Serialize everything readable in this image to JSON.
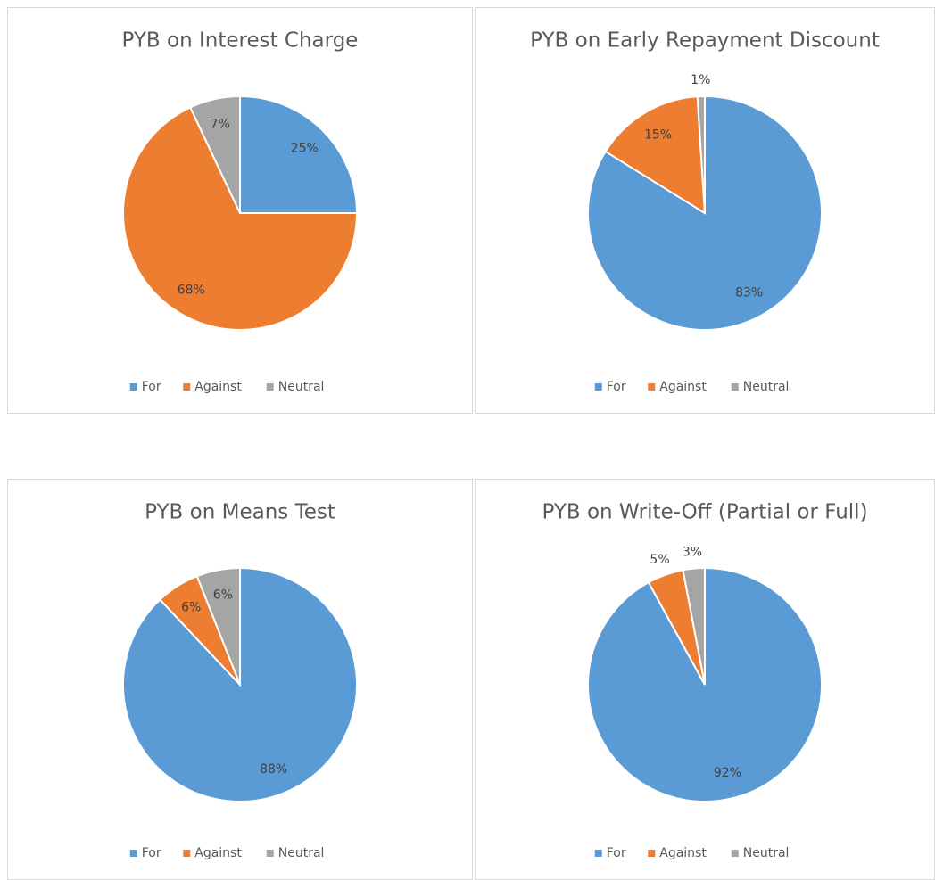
{
  "chart_data": [
    {
      "type": "pie",
      "title": "PYB on Interest Charge",
      "categories": [
        "For",
        "Against",
        "Neutral"
      ],
      "values": [
        25,
        68,
        7
      ],
      "value_labels": [
        "25%",
        "68%",
        "7%"
      ],
      "colors": [
        "#5b9bd5",
        "#ed7d31",
        "#a5a5a5"
      ],
      "legend": "bottom"
    },
    {
      "type": "pie",
      "title": "PYB on Early Repayment Discount",
      "categories": [
        "For",
        "Against",
        "Neutral"
      ],
      "values": [
        83,
        15,
        1
      ],
      "value_labels": [
        "83%",
        "15%",
        "1%"
      ],
      "colors": [
        "#5b9bd5",
        "#ed7d31",
        "#a5a5a5"
      ],
      "legend": "bottom"
    },
    {
      "type": "pie",
      "title": "PYB on Means Test",
      "categories": [
        "For",
        "Against",
        "Neutral"
      ],
      "values": [
        88,
        6,
        6
      ],
      "value_labels": [
        "88%",
        "6%",
        "6%"
      ],
      "colors": [
        "#5b9bd5",
        "#ed7d31",
        "#a5a5a5"
      ],
      "legend": "bottom"
    },
    {
      "type": "pie",
      "title": "PYB on Write-Off (Partial or Full)",
      "categories": [
        "For",
        "Against",
        "Neutral"
      ],
      "values": [
        92,
        5,
        3
      ],
      "value_labels": [
        "92%",
        "5%",
        "3%"
      ],
      "colors": [
        "#5b9bd5",
        "#ed7d31",
        "#a5a5a5"
      ],
      "legend": "bottom"
    }
  ]
}
